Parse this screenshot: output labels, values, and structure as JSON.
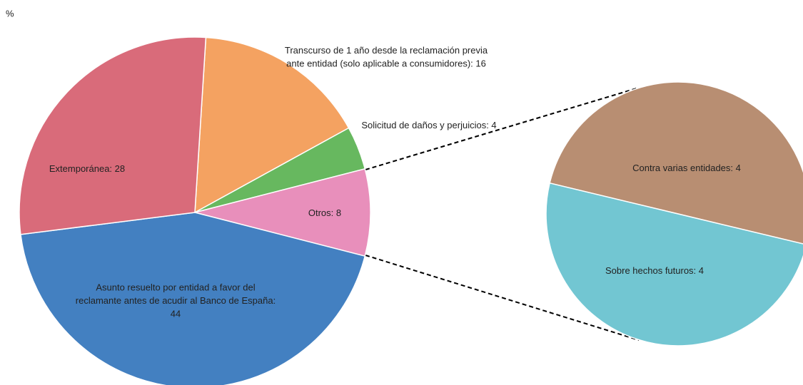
{
  "chart_data": {
    "type": "pie_of_pie",
    "unit_label": "%",
    "values": [
      16,
      4,
      8,
      44,
      28
    ],
    "value_labels": [
      "Transcurso de 1 año desde la reclamación previa ante entidad (solo aplicable a consumidores): 16",
      "Solicitud de daños y perjuicios: 4",
      "Otros: 8",
      "Asunto resuelto por entidad a favor del reclamante antes de acudir al Banco de España: 44",
      "Extemporánea: 28"
    ],
    "colors": [
      "#f4a261",
      "#67b85f",
      "#e88fbb",
      "#4380c1",
      "#d96b7a"
    ],
    "secondary": {
      "values": [
        4,
        4
      ],
      "value_labels": [
        "Contra varias entidades: 4",
        "Sobre hechos futuros: 4"
      ],
      "colors": [
        "#b88e72",
        "#72c6d2"
      ]
    }
  }
}
